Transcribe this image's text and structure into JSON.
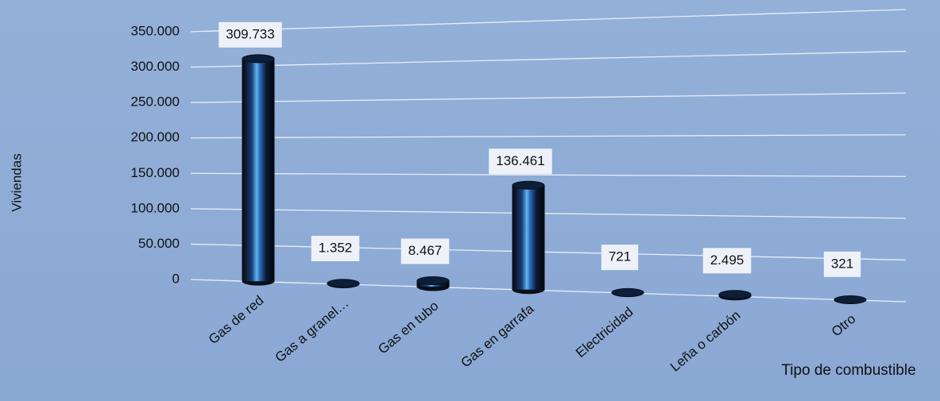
{
  "chart_data": {
    "type": "bar",
    "x_label": "Tipo de combustible",
    "y_label": "Viviendas",
    "categories": [
      "Gas de red",
      "Gas a granel…",
      "Gas en tubo",
      "Gas en garrafa",
      "Electricidad",
      "Leña o carbón",
      "Otro"
    ],
    "values": [
      309733,
      1352,
      8467,
      136461,
      721,
      2495,
      321
    ],
    "value_labels": [
      "309.733",
      "1.352",
      "8.467",
      "136.461",
      "721",
      "2.495",
      "321"
    ],
    "color": "#0a0f1a",
    "ylim": [
      0,
      350000
    ],
    "yticks": [
      0,
      {
        "value": 50000,
        "label": "50.000"
      },
      {
        "value": 100000,
        "label": "100.000"
      },
      {
        "value": 150000,
        "label": "150.000"
      },
      {
        "value": 200000,
        "label": "200.000"
      },
      {
        "value": 250000,
        "label": "250.000"
      },
      {
        "value": 300000,
        "label": "300.000"
      },
      {
        "value": 350000,
        "label": "350.000"
      }
    ],
    "grid": true
  }
}
